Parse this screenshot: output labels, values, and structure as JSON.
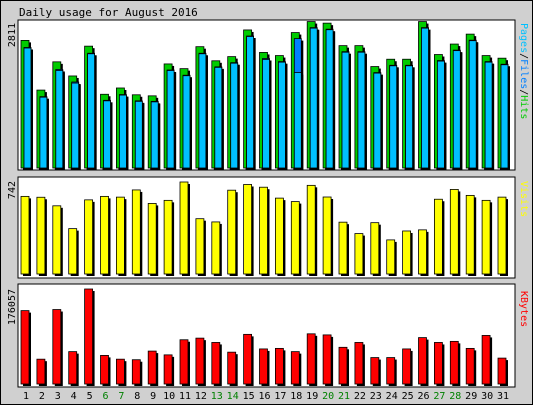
{
  "title": "Daily usage for August 2016",
  "chart_data": {
    "type": "bar",
    "title": "Daily usage for August 2016",
    "x": [
      1,
      2,
      3,
      4,
      5,
      6,
      7,
      8,
      9,
      10,
      11,
      12,
      13,
      14,
      15,
      16,
      17,
      18,
      19,
      20,
      21,
      22,
      23,
      24,
      25,
      26,
      27,
      28,
      29,
      30,
      31
    ],
    "weekend_days": [
      6,
      7,
      13,
      14,
      20,
      21,
      27,
      28
    ],
    "colors": {
      "hits": "#00cc00",
      "files": "#0080ff",
      "pages": "#00c0ff",
      "visits": "#ffff00",
      "kbytes": "#ff0000",
      "weekday_label": "#000000",
      "weekend_label": "#008000"
    },
    "panels": [
      {
        "id": "pages_files_hits",
        "axis_max_label": "2811",
        "ylim": [
          0,
          2811
        ],
        "legend": {
          "pages": "Pages",
          "sep1": "/",
          "files": "Files",
          "sep2": "/",
          "hits": "Hits"
        },
        "series": [
          {
            "name": "Hits",
            "values": [
              2440,
              1490,
              2030,
              1760,
              2330,
              1410,
              1530,
              1400,
              1380,
              1990,
              1900,
              2320,
              2050,
              2130,
              2640,
              2210,
              2150,
              2590,
              2800,
              2770,
              2340,
              2340,
              1940,
              2080,
              2080,
              2800,
              2170,
              2370,
              2560,
              2150,
              2100
            ]
          },
          {
            "name": "Files",
            "values": [
              2400,
              1460,
              1980,
              1740,
              2290,
              1390,
              1500,
              1380,
              1370,
              1970,
              1870,
              2290,
              2030,
              2110,
              2620,
              2190,
              2130,
              2570,
              2780,
              2750,
              2320,
              2320,
              1920,
              2060,
              2060,
              2780,
              2150,
              2350,
              2540,
              2130,
              2080
            ]
          },
          {
            "name": "Pages",
            "values": [
              2390,
              1450,
              1960,
              1720,
              2280,
              1380,
              1490,
              1370,
              1360,
              1960,
              1860,
              2280,
              2020,
              2100,
              2610,
              2170,
              2120,
              1920,
              2770,
              2740,
              2310,
              2310,
              1910,
              2050,
              2050,
              2770,
              2140,
              2340,
              2530,
              2120,
              2070
            ]
          }
        ]
      },
      {
        "id": "visits",
        "axis_max_label": "742",
        "ylim": [
          0,
          742
        ],
        "legend": {
          "visits": "Visits"
        },
        "series": [
          {
            "name": "Visits",
            "values": [
              626,
              619,
              550,
              366,
              598,
              626,
              620,
              678,
              569,
              594,
              742,
              446,
              420,
              676,
              722,
              700,
              612,
              584,
              715,
              621,
              418,
              326,
              414,
              275,
              347,
              356,
              603,
              682,
              634,
              594,
              620
            ]
          }
        ]
      },
      {
        "id": "kbytes",
        "axis_max_label": "176057",
        "ylim": [
          0,
          176057
        ],
        "legend": {
          "kbytes": "KBytes"
        },
        "series": [
          {
            "name": "KBytes",
            "values": [
              136000,
              46000,
              138000,
              60000,
              176057,
              53000,
              46000,
              45000,
              61000,
              54000,
              82000,
              85000,
              77000,
              59000,
              92000,
              65000,
              66000,
              60000,
              93000,
              91000,
              68000,
              77000,
              49000,
              49000,
              65000,
              86000,
              77000,
              79000,
              66000,
              90000,
              48000
            ]
          }
        ]
      }
    ]
  }
}
